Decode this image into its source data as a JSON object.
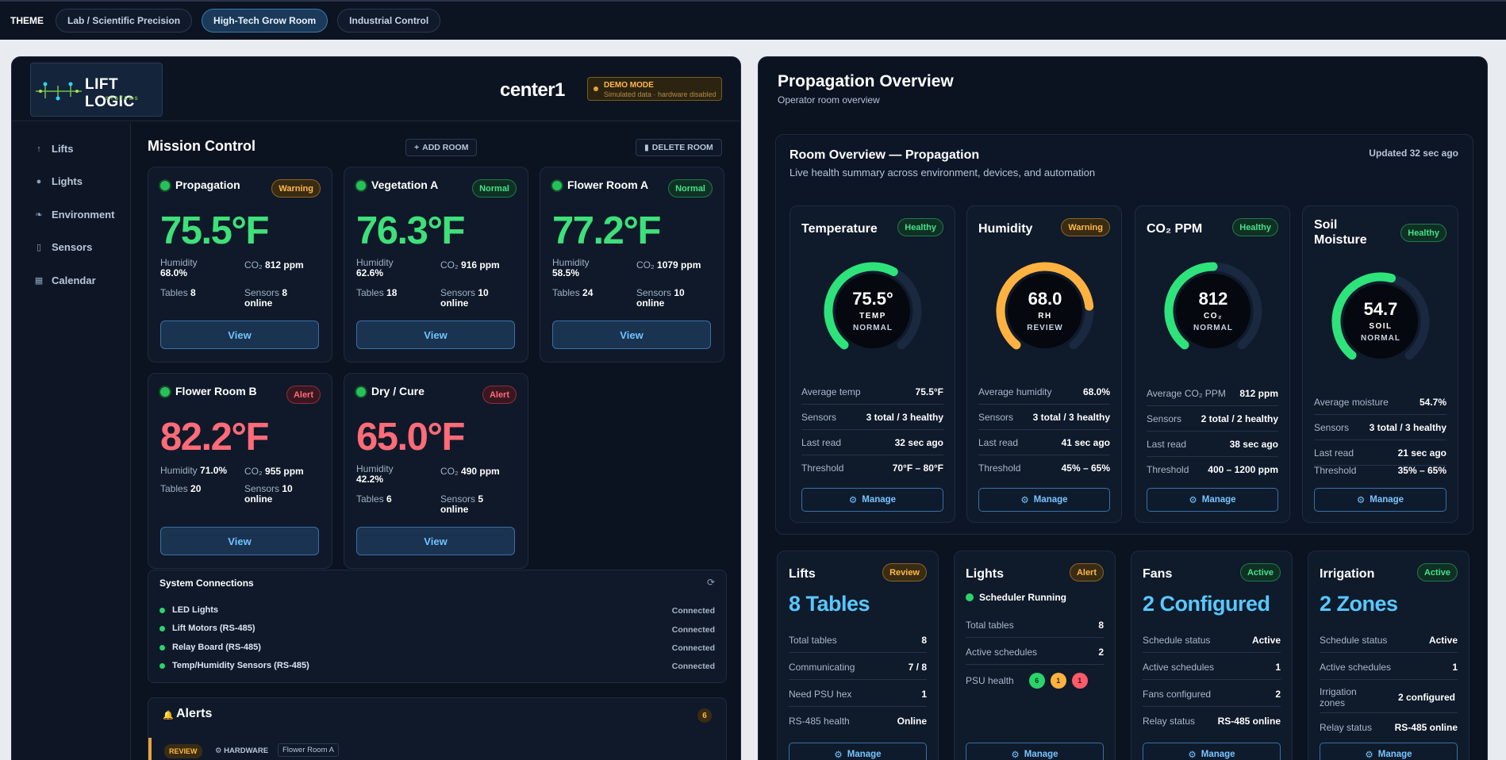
{
  "theme_bar": {
    "label": "THEME",
    "options": [
      "Lab / Scientific Precision",
      "High-Tech Grow Room",
      "Industrial Control"
    ],
    "active": "High-Tech Grow Room"
  },
  "header": {
    "logo_text": "LIFT LOGIC",
    "logo_sub": "SYSTEMS",
    "site_name": "center1",
    "demo_title": "DEMO MODE",
    "demo_sub": "Simulated data · hardware disabled"
  },
  "sidebar": {
    "items": [
      {
        "label": "Lifts",
        "icon": "arrow-up-icon"
      },
      {
        "label": "Lights",
        "icon": "bulb-icon"
      },
      {
        "label": "Environment",
        "icon": "leaf-icon"
      },
      {
        "label": "Sensors",
        "icon": "thermometer-icon"
      },
      {
        "label": "Calendar",
        "icon": "calendar-icon"
      }
    ]
  },
  "mission_control": {
    "title": "Mission Control",
    "add_room": "ADD ROOM",
    "delete_room": "DELETE ROOM",
    "rooms": [
      {
        "name": "Propagation",
        "status": "Warning",
        "temp": "75.5°F",
        "humidity_label": "Humidity",
        "humidity": "68.0%",
        "co2_label": "CO₂",
        "co2": "812 ppm",
        "tables_label": "Tables",
        "tables": "8",
        "sensors_label": "Sensors",
        "sensors": "8",
        "online": "online",
        "view": "View"
      },
      {
        "name": "Vegetation A",
        "status": "Normal",
        "temp": "76.3°F",
        "humidity_label": "Humidity",
        "humidity": "62.6%",
        "co2_label": "CO₂",
        "co2": "916 ppm",
        "tables_label": "Tables",
        "tables": "18",
        "sensors_label": "Sensors",
        "sensors": "10",
        "online": "online",
        "view": "View"
      },
      {
        "name": "Flower Room A",
        "status": "Normal",
        "temp": "77.2°F",
        "humidity_label": "Humidity",
        "humidity": "58.5%",
        "co2_label": "CO₂",
        "co2": "1079 ppm",
        "tables_label": "Tables",
        "tables": "24",
        "sensors_label": "Sensors",
        "sensors": "10",
        "online": "online",
        "view": "View"
      },
      {
        "name": "Flower Room B",
        "status": "Alert",
        "temp": "82.2°F",
        "humidity_label": "Humidity",
        "humidity": "71.0%",
        "co2_label": "CO₂",
        "co2": "955 ppm",
        "tables_label": "Tables",
        "tables": "20",
        "sensors_label": "Sensors",
        "sensors": "10",
        "online": "online",
        "view": "View"
      },
      {
        "name": "Dry / Cure",
        "status": "Alert",
        "temp": "65.0°F",
        "humidity_label": "Humidity",
        "humidity": "42.2%",
        "co2_label": "CO₂",
        "co2": "490 ppm",
        "tables_label": "Tables",
        "tables": "6",
        "sensors_label": "Sensors",
        "sensors": "5",
        "online": "online",
        "view": "View"
      }
    ]
  },
  "system_connections": {
    "title": "System Connections",
    "items": [
      {
        "name": "LED Lights",
        "status": "Connected"
      },
      {
        "name": "Lift Motors (RS-485)",
        "status": "Connected"
      },
      {
        "name": "Relay Board (RS-485)",
        "status": "Connected"
      },
      {
        "name": "Temp/Humidity Sensors (RS-485)",
        "status": "Connected"
      }
    ]
  },
  "alerts": {
    "title": "Alerts",
    "count": "6",
    "first": {
      "level": "REVIEW",
      "source": "HARDWARE",
      "room": "Flower Room A"
    }
  },
  "overview": {
    "title": "Propagation Overview",
    "subtitle": "Operator room overview",
    "room_title": "Room Overview — Propagation",
    "room_sub": "Live health summary across environment, devices, and automation",
    "updated": "Updated 32 sec ago",
    "metrics": [
      {
        "title": "Temperature",
        "status": "Healthy",
        "value": "75.5°",
        "unit": "TEMP",
        "state": "NORMAL",
        "level": 0.6,
        "color": "#2ee37a",
        "rows": [
          [
            "Average temp",
            "75.5°F"
          ],
          [
            "Sensors",
            "3 total / 3 healthy"
          ],
          [
            "Last read",
            "32 sec ago"
          ],
          [
            "Threshold",
            "70°F – 80°F"
          ]
        ]
      },
      {
        "title": "Humidity",
        "status": "Warning",
        "value": "68.0",
        "unit": "RH",
        "state": "REVIEW",
        "level": 0.8,
        "color": "#ffb23f",
        "rows": [
          [
            "Average humidity",
            "68.0%"
          ],
          [
            "Sensors",
            "3 total / 3 healthy"
          ],
          [
            "Last read",
            "41 sec ago"
          ],
          [
            "Threshold",
            "45% – 65%"
          ]
        ]
      },
      {
        "title": "CO₂ PPM",
        "status": "Healthy",
        "value": "812",
        "unit": "CO₂",
        "state": "NORMAL",
        "level": 0.5,
        "color": "#2ee37a",
        "rows": [
          [
            "Average CO₂ PPM",
            "812 ppm"
          ],
          [
            "Sensors",
            "2 total / 2 healthy"
          ],
          [
            "Last read",
            "38 sec ago"
          ],
          [
            "Threshold",
            "400 – 1200 ppm"
          ]
        ]
      },
      {
        "title": "Soil Moisture",
        "status": "Healthy",
        "value": "54.7",
        "unit": "SOIL",
        "state": "NORMAL",
        "level": 0.55,
        "color": "#2ee37a",
        "rows": [
          [
            "Average moisture",
            "54.7%"
          ],
          [
            "Sensors",
            "3 total / 3 healthy"
          ],
          [
            "Last read",
            "21 sec ago"
          ],
          [
            "Threshold",
            "35% – 65%"
          ]
        ]
      }
    ],
    "manage": "Manage"
  },
  "subsystems": {
    "lifts": {
      "title": "Lifts",
      "status": "Review",
      "big": "8 Tables",
      "rows": [
        [
          "Total tables",
          "8"
        ],
        [
          "Communicating",
          "7 / 8"
        ],
        [
          "Need PSU hex",
          "1"
        ],
        [
          "RS-485 health",
          "Online"
        ]
      ]
    },
    "lights": {
      "title": "Lights",
      "status": "Alert",
      "scheduler": "Scheduler Running",
      "rows": [
        [
          "Total tables",
          "8"
        ],
        [
          "Active schedules",
          "2"
        ]
      ],
      "psu_label": "PSU health",
      "psu": [
        "6",
        "1",
        "1"
      ]
    },
    "fans": {
      "title": "Fans",
      "status": "Active",
      "big": "2 Configured",
      "rows": [
        [
          "Schedule status",
          "Active"
        ],
        [
          "Active schedules",
          "1"
        ],
        [
          "Fans configured",
          "2"
        ],
        [
          "Relay status",
          "RS-485 online"
        ]
      ]
    },
    "irrigation": {
      "title": "Irrigation",
      "status": "Active",
      "big": "2 Zones",
      "rows": [
        [
          "Schedule status",
          "Active"
        ],
        [
          "Active schedules",
          "1"
        ],
        [
          "Irrigation zones",
          "2 configured"
        ],
        [
          "Relay status",
          "RS-485 online"
        ]
      ]
    }
  },
  "colors": {
    "accent": "#58c8ff",
    "healthy": "#2ee37a",
    "warning": "#ffb23f",
    "alert": "#ff6b78"
  }
}
